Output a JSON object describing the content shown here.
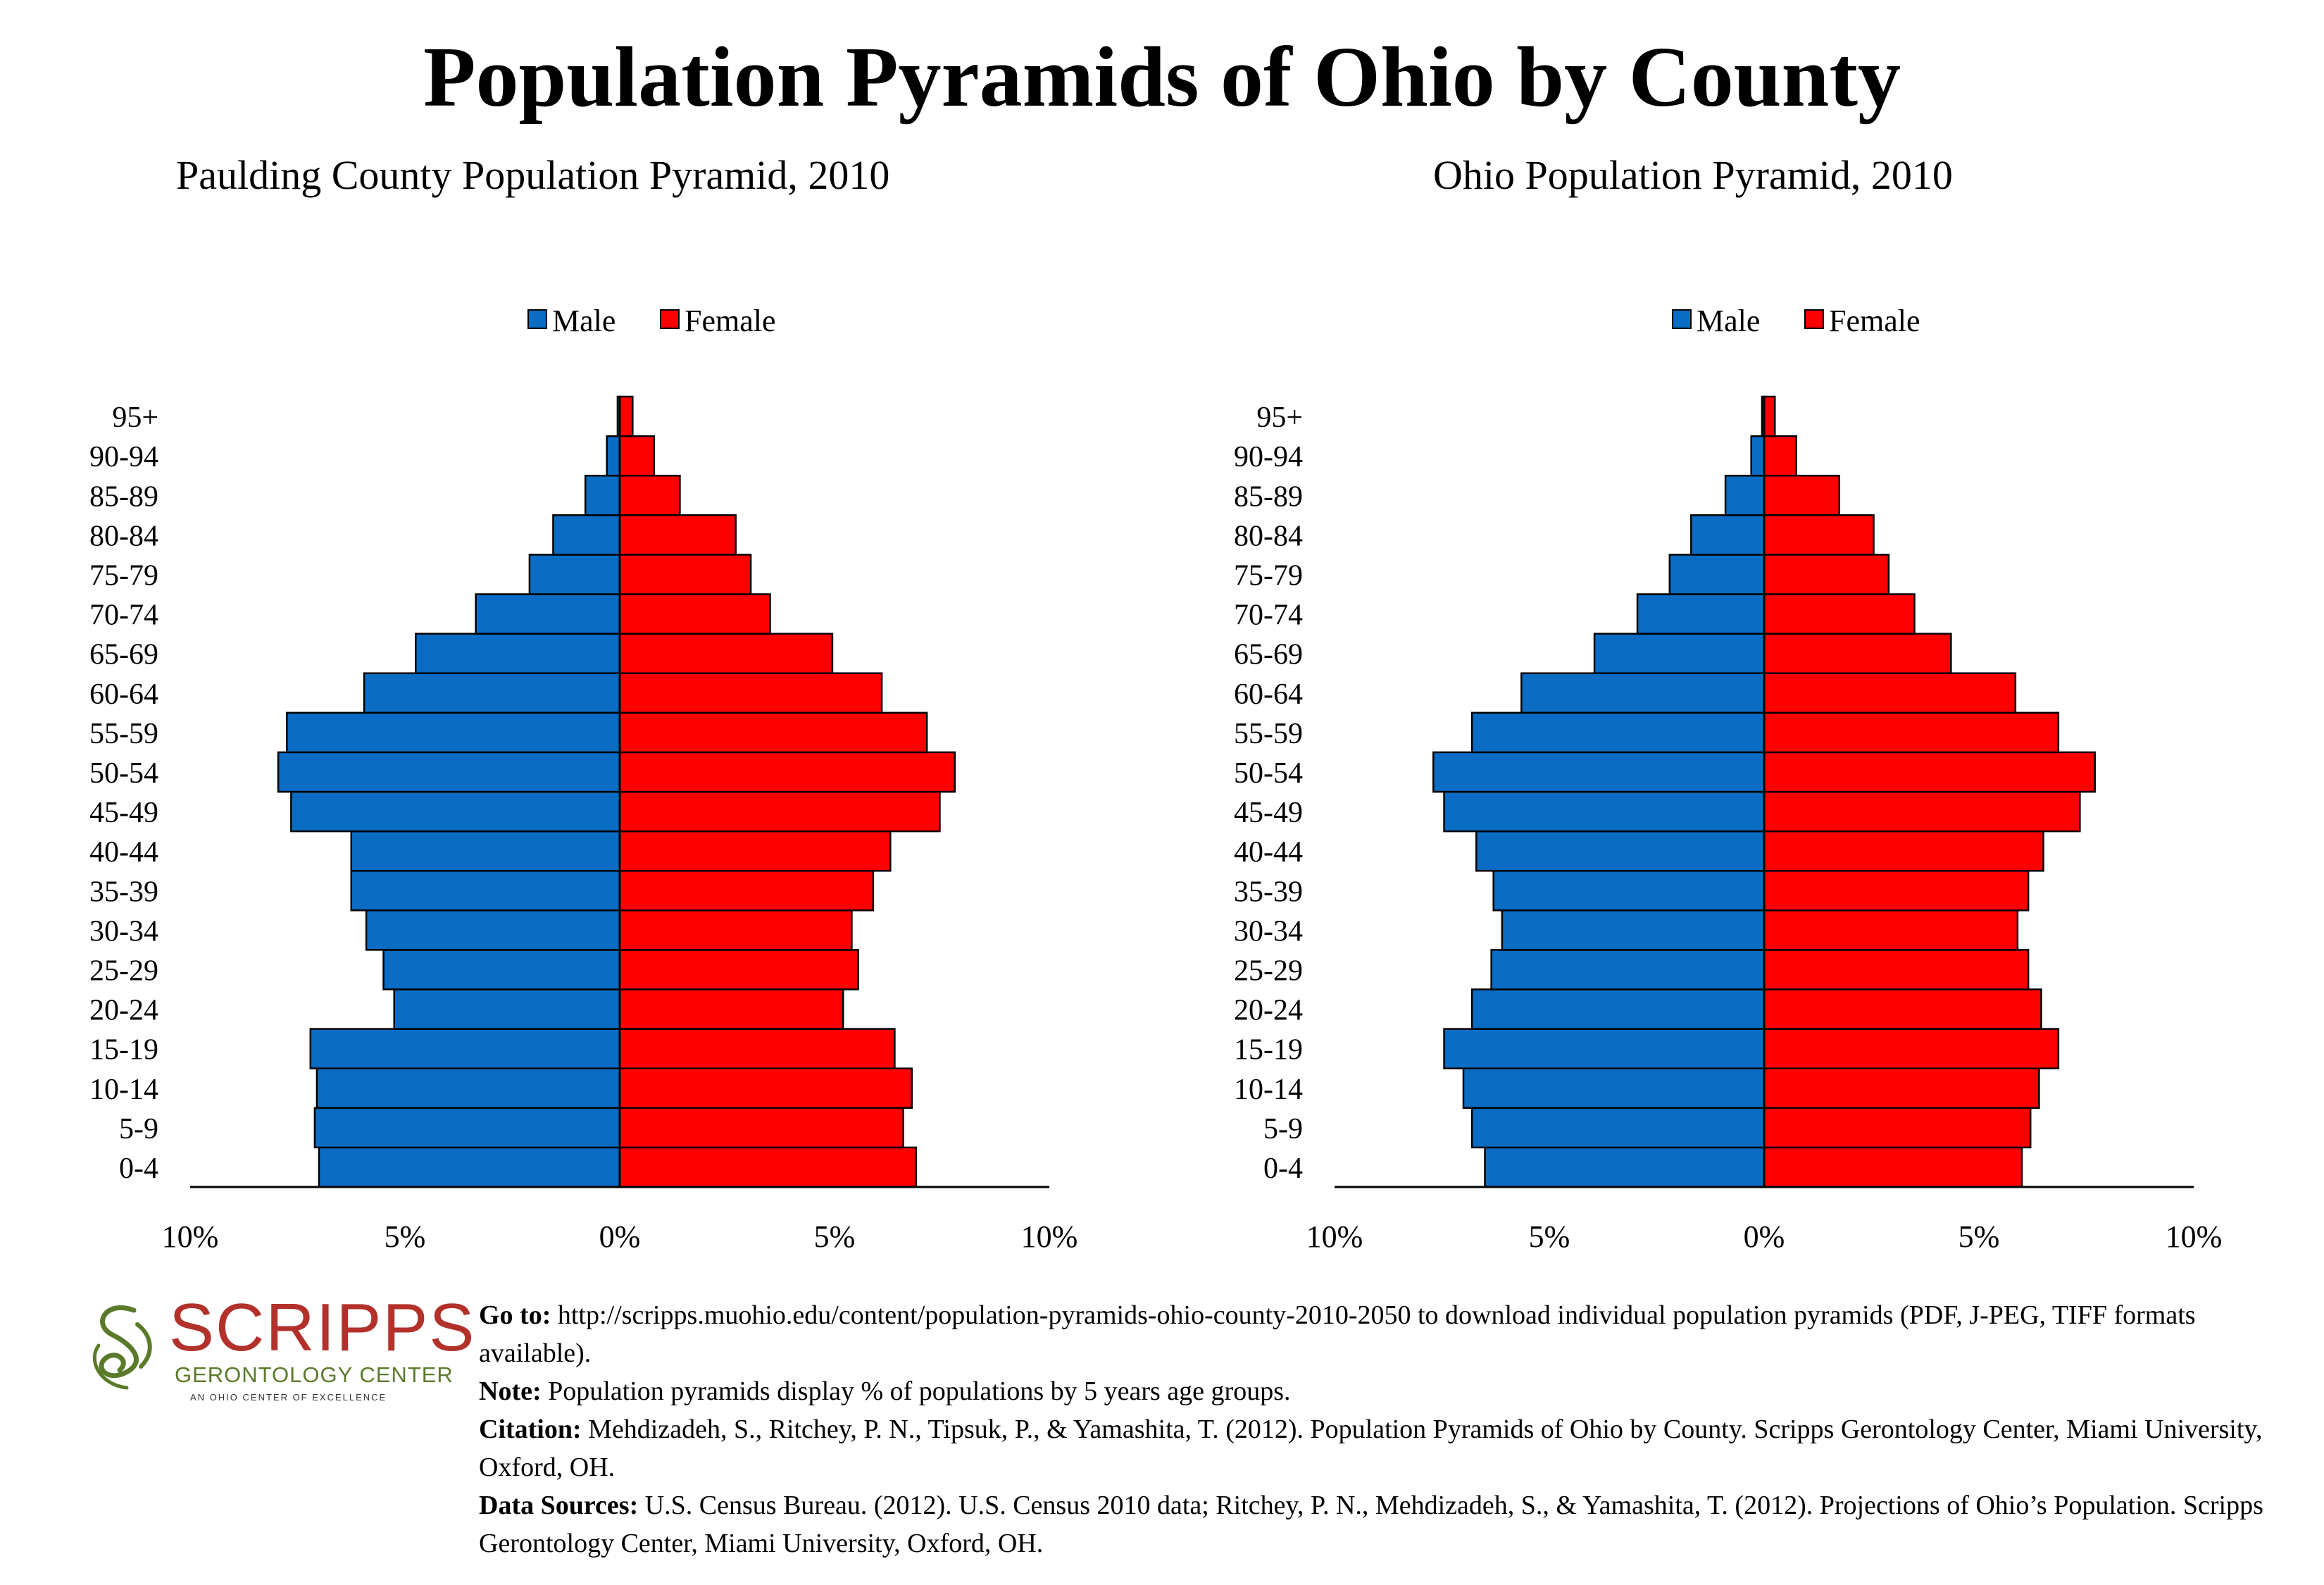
{
  "main_title": "Population Pyramids of Ohio by County",
  "colors": {
    "male": "#0a6cc2",
    "female": "#ff0000"
  },
  "chart_data": [
    {
      "type": "bar",
      "title": "Paulding County Population Pyramid, 2010",
      "legend": [
        "Male",
        "Female"
      ],
      "legend_placement": "top-center",
      "categories": [
        "0-4",
        "5-9",
        "10-14",
        "15-19",
        "20-24",
        "25-29",
        "30-34",
        "35-39",
        "40-44",
        "45-49",
        "50-54",
        "55-59",
        "60-64",
        "65-69",
        "70-74",
        "75-79",
        "80-84",
        "85-89",
        "90-94",
        "95+"
      ],
      "series": [
        {
          "name": "Male",
          "values": [
            7.0,
            7.1,
            7.05,
            7.2,
            5.25,
            5.5,
            5.9,
            6.25,
            6.25,
            7.65,
            7.95,
            7.75,
            5.95,
            4.75,
            3.35,
            2.1,
            1.55,
            0.8,
            0.3,
            0.05
          ]
        },
        {
          "name": "Female",
          "values": [
            6.9,
            6.6,
            6.8,
            6.4,
            5.2,
            5.55,
            5.4,
            5.9,
            6.3,
            7.45,
            7.8,
            7.15,
            6.1,
            4.95,
            3.5,
            3.05,
            2.7,
            1.4,
            0.8,
            0.3
          ]
        }
      ],
      "xlim": [
        -10,
        10
      ],
      "xticks": [
        "10%",
        "5%",
        "0%",
        "5%",
        "10%"
      ]
    },
    {
      "type": "bar",
      "title": "Ohio Population Pyramid, 2010",
      "legend": [
        "Male",
        "Female"
      ],
      "legend_placement": "top-center",
      "categories": [
        "0-4",
        "5-9",
        "10-14",
        "15-19",
        "20-24",
        "25-29",
        "30-34",
        "35-39",
        "40-44",
        "45-49",
        "50-54",
        "55-59",
        "60-64",
        "65-69",
        "70-74",
        "75-79",
        "80-84",
        "85-89",
        "90-94",
        "95+"
      ],
      "series": [
        {
          "name": "Male",
          "values": [
            6.5,
            6.8,
            7.0,
            7.45,
            6.8,
            6.35,
            6.1,
            6.3,
            6.7,
            7.45,
            7.7,
            6.8,
            5.65,
            3.95,
            2.95,
            2.2,
            1.7,
            0.9,
            0.3,
            0.05
          ]
        },
        {
          "name": "Female",
          "values": [
            6.0,
            6.2,
            6.4,
            6.85,
            6.45,
            6.15,
            5.9,
            6.15,
            6.5,
            7.35,
            7.7,
            6.85,
            5.85,
            4.35,
            3.5,
            2.9,
            2.55,
            1.75,
            0.75,
            0.25
          ]
        }
      ],
      "xlim": [
        -10,
        10
      ],
      "xticks": [
        "10%",
        "5%",
        "0%",
        "5%",
        "10%"
      ]
    }
  ],
  "footer": {
    "goto_label": "Go to:",
    "goto_text": "http://scripps.muohio.edu/content/population-pyramids-ohio-county-2010-2050 to download individual population pyramids (PDF, J-PEG, TIFF formats available).",
    "note_label": "Note:",
    "note_text": "Population pyramids display % of populations by 5 years age groups.",
    "citation_label": "Citation:",
    "citation_text": "Mehdizadeh, S., Ritchey, P. N., Tipsuk, P., & Yamashita, T. (2012). Population Pyramids of Ohio by County. Scripps Gerontology Center, Miami University, Oxford, OH.",
    "sources_label": "Data Sources:",
    "sources_text": "U.S. Census Bureau. (2012). U.S. Census 2010 data; Ritchey, P. N., Mehdizadeh, S., & Yamashita, T. (2012). Projections of Ohio’s Population. Scripps Gerontology Center, Miami University, Oxford, OH."
  },
  "logo": {
    "name": "SCRIPPS",
    "subtitle": "GERONTOLOGY CENTER",
    "tagline": "AN OHIO CENTER OF EXCELLENCE"
  }
}
